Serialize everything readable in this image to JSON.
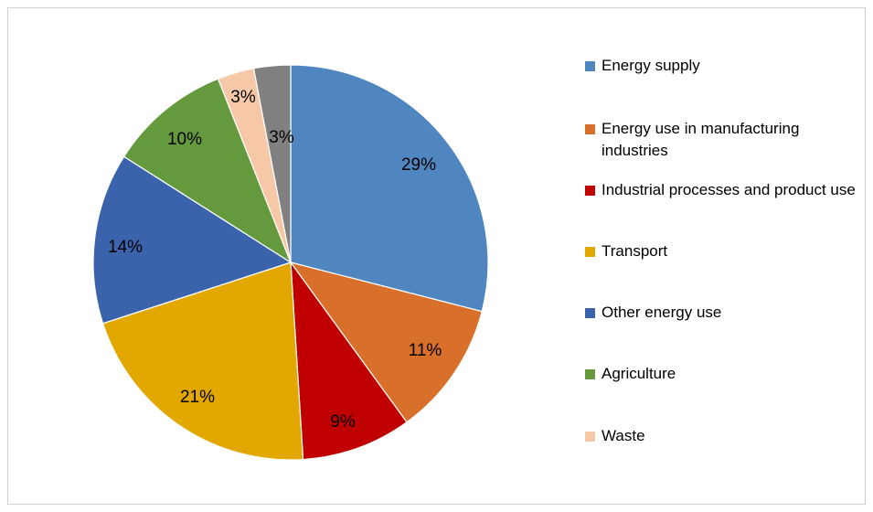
{
  "chart_data": {
    "type": "pie",
    "slices": [
      {
        "label": "Energy supply",
        "value": 29,
        "display": "29%",
        "color": "#4f86c0"
      },
      {
        "label": "Energy use in manufacturing industries",
        "value": 11,
        "display": "11%",
        "color": "#d86f2b"
      },
      {
        "label": "Industrial processes and product use",
        "value": 9,
        "display": "9%",
        "color": "#c00000"
      },
      {
        "label": "Transport",
        "value": 21,
        "display": "21%",
        "color": "#e2a800"
      },
      {
        "label": "Other energy use",
        "value": 14,
        "display": "14%",
        "color": "#3b63ac"
      },
      {
        "label": "Agriculture",
        "value": 10,
        "display": "10%",
        "color": "#65993d"
      },
      {
        "label": "Waste",
        "value": 3,
        "display": "3%",
        "color": "#f7c8a8"
      },
      {
        "label": "",
        "value": 3,
        "display": "3%",
        "color": "#808080"
      }
    ],
    "legend": [
      "Energy supply",
      "Energy use in manufacturing industries",
      "Industrial processes and product use",
      "Transport",
      "Other energy use",
      "Agriculture",
      "Waste"
    ],
    "legend_position": "right"
  }
}
